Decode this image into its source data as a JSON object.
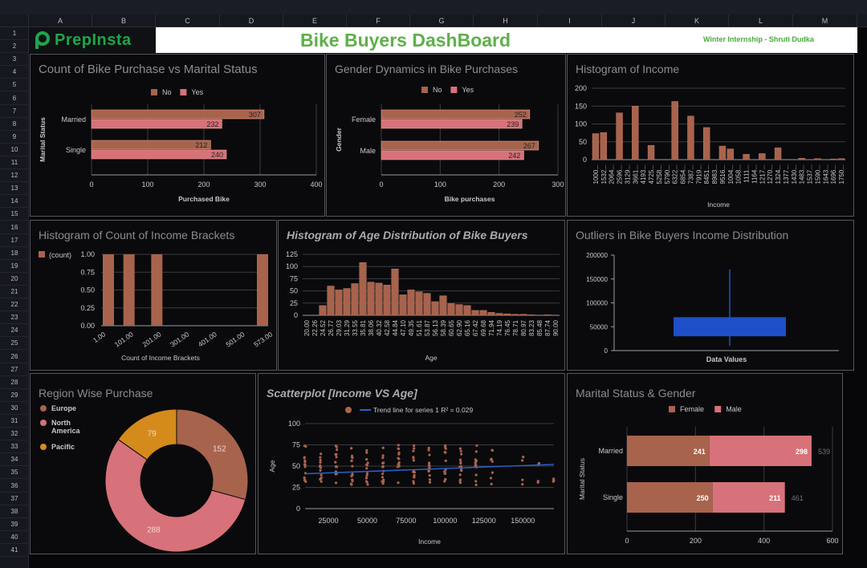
{
  "spreadsheet": {
    "columns": [
      "A",
      "B",
      "C",
      "D",
      "E",
      "F",
      "G",
      "H",
      "I",
      "J",
      "K",
      "L",
      "M"
    ],
    "rows": [
      "1",
      "2",
      "3",
      "4",
      "5",
      "6",
      "7",
      "8",
      "9",
      "10",
      "11",
      "12",
      "13",
      "14",
      "15",
      "16",
      "17",
      "18",
      "19",
      "20",
      "21",
      "22",
      "23",
      "24",
      "25",
      "26",
      "27",
      "28",
      "29",
      "30",
      "31",
      "32",
      "33",
      "34",
      "35",
      "36",
      "37",
      "38",
      "39",
      "40",
      "41"
    ]
  },
  "header": {
    "logo_text": "PrepInsta",
    "title": "Bike Buyers DashBoard",
    "subtitle": "Winter Internship - Shruti Dudka"
  },
  "colors": {
    "bar_dark": "#a8634d",
    "bar_pink": "#d7717a",
    "orange": "#d58a1c",
    "blue": "#1f4fc8",
    "trend": "#2a5fc8"
  },
  "chart_data": [
    {
      "id": "marital",
      "type": "bar",
      "title": "Count of Bike Purchase vs Marital Status",
      "categories": [
        "Married",
        "Single"
      ],
      "series": [
        {
          "name": "No",
          "values": [
            307,
            212
          ]
        },
        {
          "name": "Yes",
          "values": [
            232,
            240
          ]
        }
      ],
      "xlabel": "Purchased Bike",
      "ylabel": "Marital Status",
      "xlim": [
        0,
        400
      ],
      "xticks": [
        "0",
        "100",
        "200",
        "300",
        "400"
      ],
      "legend": "top"
    },
    {
      "id": "gender",
      "type": "bar",
      "title": "Gender Dynamics in Bike Purchases",
      "categories": [
        "Female",
        "Male"
      ],
      "series": [
        {
          "name": "No",
          "values": [
            252,
            267
          ]
        },
        {
          "name": "Yes",
          "values": [
            239,
            242
          ]
        }
      ],
      "xlabel": "Bike purchases",
      "ylabel": "Gender",
      "xlim": [
        0,
        300
      ],
      "xticks": [
        "0",
        "100",
        "200",
        "300"
      ],
      "legend": "top"
    },
    {
      "id": "income_hist",
      "type": "bar",
      "title": "Histogram of Income",
      "categories": [
        "1000...",
        "1532...",
        "2064...",
        "2596...",
        "3129...",
        "3661...",
        "4193...",
        "4725...",
        "5258...",
        "5790...",
        "6322...",
        "6854...",
        "7387...",
        "7919...",
        "8451...",
        "8983...",
        "9516...",
        "1004...",
        "1058...",
        "1111...",
        "1164...",
        "1217...",
        "1270...",
        "1324...",
        "1377...",
        "1430...",
        "1483...",
        "1537...",
        "1590...",
        "1643...",
        "1696...",
        "1750..."
      ],
      "values": [
        73,
        76,
        0,
        131,
        0,
        150,
        0,
        40,
        0,
        0,
        163,
        0,
        122,
        0,
        90,
        0,
        38,
        30,
        0,
        15,
        0,
        17,
        0,
        33,
        0,
        0,
        4,
        0,
        3,
        0,
        2,
        3
      ],
      "xlabel": "Income",
      "ylim": [
        0,
        200
      ],
      "yticks": [
        "0",
        "50",
        "100",
        "150",
        "200"
      ]
    },
    {
      "id": "brackets",
      "type": "bar",
      "title": "Histogram of Count of Income Brackets",
      "legend_label": "(count)",
      "categories": [
        "1.00",
        "101.00",
        "201.00",
        "301.00",
        "401.00",
        "501.00",
        "573.00"
      ],
      "values": [
        1,
        1,
        1,
        0,
        0,
        0,
        1
      ],
      "xlabel": "Count of Income Brackets",
      "ylim": [
        0,
        1
      ],
      "yticks": [
        "0.00",
        "0.25",
        "0.50",
        "0.75",
        "1.00"
      ]
    },
    {
      "id": "age_hist",
      "type": "bar",
      "title": "Histogram of Age Distribution of Bike Buyers",
      "categories": [
        "20.00",
        "22.26",
        "24.52",
        "26.77",
        "29.03",
        "31.29",
        "33.55",
        "35.81",
        "38.06",
        "40.32",
        "42.58",
        "44.84",
        "47.10",
        "49.35",
        "51.61",
        "53.87",
        "56.13",
        "58.39",
        "60.65",
        "62.90",
        "65.16",
        "67.42",
        "69.68",
        "71.94",
        "74.19",
        "76.45",
        "78.71",
        "80.97",
        "83.23",
        "85.48",
        "87.74",
        "90.00"
      ],
      "values": [
        0,
        0,
        20,
        60,
        52,
        55,
        65,
        108,
        68,
        66,
        62,
        95,
        42,
        52,
        48,
        45,
        28,
        40,
        24,
        22,
        20,
        10,
        10,
        6,
        4,
        3,
        2,
        2,
        1,
        0,
        1,
        0
      ],
      "xlabel": "Age",
      "ylim": [
        0,
        125
      ],
      "yticks": [
        "0",
        "25",
        "50",
        "75",
        "100",
        "125"
      ]
    },
    {
      "id": "outliers",
      "type": "box",
      "title": "Outliers in Bike Buyers Income Distribution",
      "xlabel": "Data Values",
      "whisker_low": 10000,
      "q1": 30000,
      "q3": 70000,
      "whisker_high": 170000,
      "ylim": [
        0,
        200000
      ],
      "yticks": [
        "0",
        "50000",
        "100000",
        "150000",
        "200000"
      ]
    },
    {
      "id": "region",
      "type": "pie",
      "title": "Region Wise Purchase",
      "labels": [
        "Europe",
        "North America",
        "Pacific"
      ],
      "values": [
        152,
        288,
        79
      ],
      "legend": "left"
    },
    {
      "id": "scatter",
      "type": "scatter",
      "title": "Scatterplot [Income VS Age]",
      "legend_point": "",
      "legend_trend": "Trend line for series 1 R² = 0.029",
      "xlabel": "Income",
      "ylabel": "Age",
      "xlim": [
        10000,
        170000
      ],
      "ylim": [
        0,
        100
      ],
      "xticks": [
        "25000",
        "50000",
        "75000",
        "100000",
        "125000",
        "150000"
      ],
      "yticks": [
        "0",
        "25",
        "50",
        "75",
        "100"
      ],
      "trend": [
        [
          10000,
          41
        ],
        [
          170000,
          52
        ]
      ],
      "income_levels": [
        10000,
        20000,
        30000,
        40000,
        50000,
        60000,
        70000,
        80000,
        90000,
        100000,
        110000,
        120000,
        130000,
        150000,
        160000,
        170000
      ]
    },
    {
      "id": "marital_gender",
      "type": "bar",
      "stacked": true,
      "title": "Marital Status & Gender",
      "categories": [
        "Married",
        "Single"
      ],
      "series": [
        {
          "name": "Female",
          "values": [
            241,
            250
          ]
        },
        {
          "name": "Male",
          "values": [
            298,
            211
          ]
        }
      ],
      "totals": [
        539,
        461
      ],
      "ylabel": "Marital Status",
      "xlim": [
        0,
        600
      ],
      "xticks": [
        "0",
        "200",
        "400",
        "600"
      ],
      "legend": "top"
    }
  ]
}
